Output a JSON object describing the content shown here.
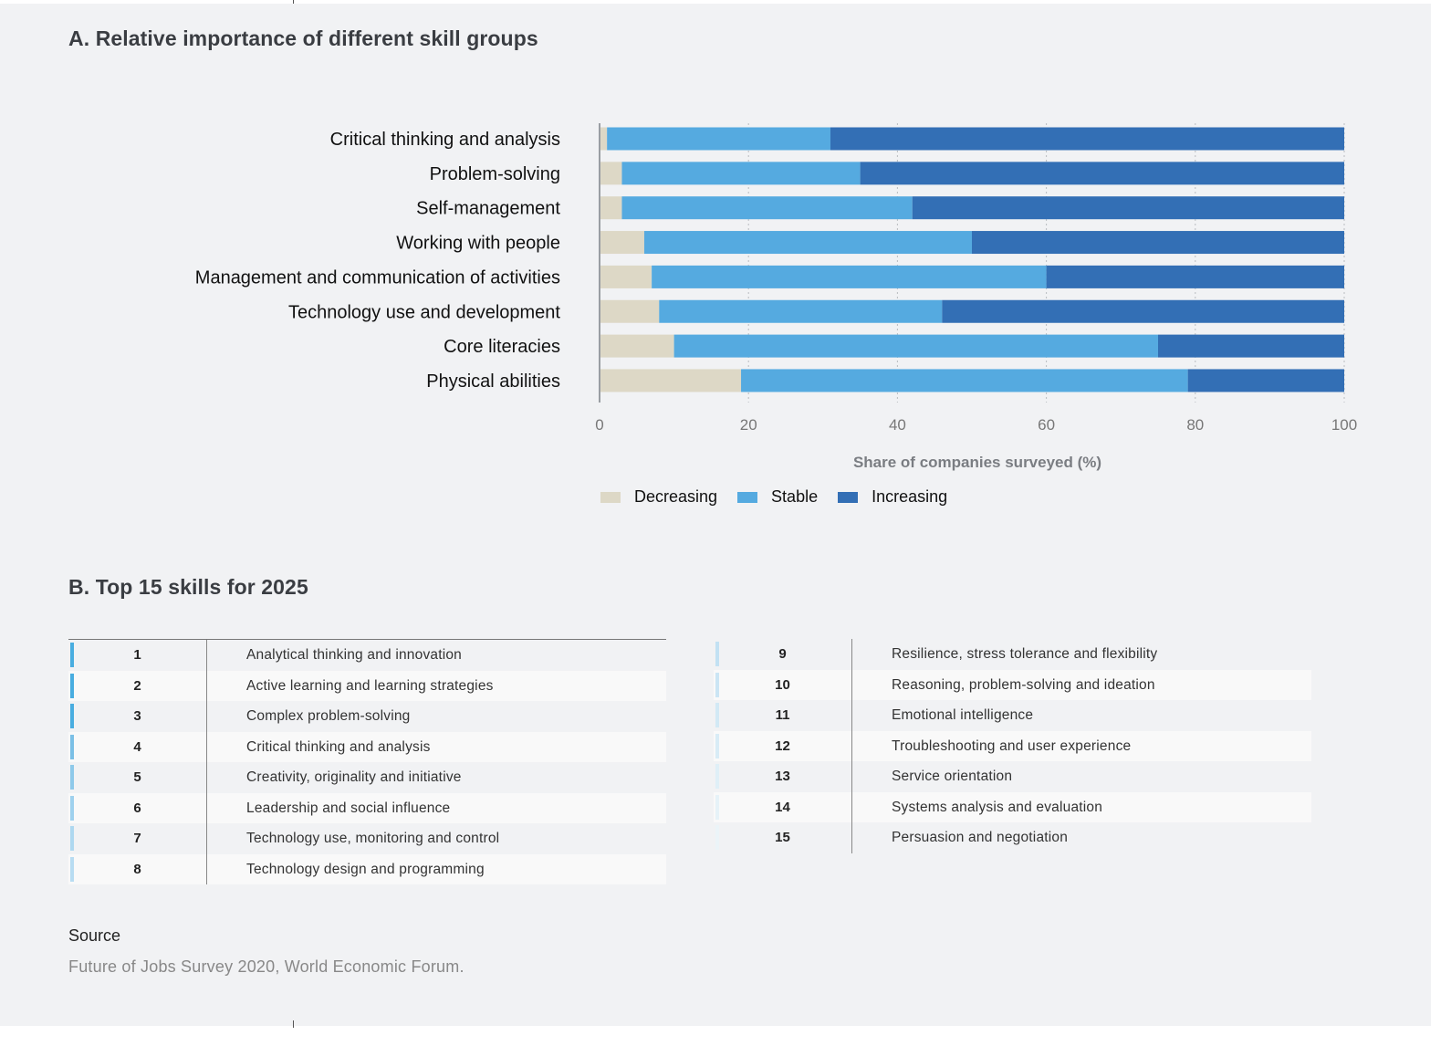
{
  "section_a_title": "A. Relative importance of different skill groups",
  "section_b_title": "B. Top 15 skills for 2025",
  "colors": {
    "decreasing": "#ddd8c6",
    "stable": "#55aae0",
    "increasing": "#336fb5"
  },
  "chart_data": {
    "type": "bar",
    "orientation": "horizontal",
    "stacked": true,
    "categories": [
      "Critical thinking and analysis",
      "Problem-solving",
      "Self-management",
      "Working with people",
      "Management and communication of activities",
      "Technology use and development",
      "Core literacies",
      "Physical abilities"
    ],
    "series": [
      {
        "name": "Decreasing",
        "values": [
          1,
          3,
          3,
          6,
          7,
          8,
          10,
          19
        ]
      },
      {
        "name": "Stable",
        "values": [
          30,
          32,
          39,
          44,
          53,
          38,
          65,
          60
        ]
      },
      {
        "name": "Increasing",
        "values": [
          69,
          65,
          58,
          50,
          40,
          54,
          25,
          21
        ]
      }
    ],
    "xlabel": "Share of companies surveyed (%)",
    "ylabel": "",
    "xlim": [
      0,
      100
    ],
    "xticks": [
      "0",
      "20",
      "40",
      "60",
      "80",
      "100"
    ],
    "grid": "vertical dotted",
    "legend_position": "bottom"
  },
  "top_skills": {
    "left": [
      {
        "rank": "1",
        "skill": "Analytical thinking and innovation"
      },
      {
        "rank": "2",
        "skill": "Active learning and learning strategies"
      },
      {
        "rank": "3",
        "skill": "Complex problem-solving"
      },
      {
        "rank": "4",
        "skill": "Critical thinking and analysis"
      },
      {
        "rank": "5",
        "skill": "Creativity, originality and initiative"
      },
      {
        "rank": "6",
        "skill": "Leadership and social influence"
      },
      {
        "rank": "7",
        "skill": "Technology use, monitoring and control"
      },
      {
        "rank": "8",
        "skill": "Technology design and programming"
      }
    ],
    "right": [
      {
        "rank": "9",
        "skill": "Resilience, stress tolerance and flexibility"
      },
      {
        "rank": "10",
        "skill": "Reasoning, problem-solving and ideation"
      },
      {
        "rank": "11",
        "skill": "Emotional intelligence"
      },
      {
        "rank": "12",
        "skill": "Troubleshooting and user experience"
      },
      {
        "rank": "13",
        "skill": "Service orientation"
      },
      {
        "rank": "14",
        "skill": "Systems analysis and evaluation"
      },
      {
        "rank": "15",
        "skill": "Persuasion and negotiation"
      }
    ]
  },
  "source": {
    "label": "Source",
    "text": "Future of Jobs Survey 2020, World Economic Forum."
  }
}
